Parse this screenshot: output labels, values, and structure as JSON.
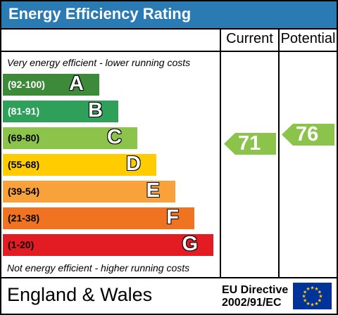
{
  "header": {
    "title": "Energy Efficiency Rating"
  },
  "columns": {
    "current": "Current",
    "potential": "Potential"
  },
  "notes": {
    "top": "Very energy efficient - lower running costs",
    "bottom": "Not energy efficient - higher running costs"
  },
  "bands": [
    {
      "range": "(92-100)",
      "letter": "A",
      "color": "#3d8a3a",
      "range_color": "#ffffff"
    },
    {
      "range": "(81-91)",
      "letter": "B",
      "color": "#2fa05a",
      "range_color": "#ffffff"
    },
    {
      "range": "(69-80)",
      "letter": "C",
      "color": "#8cc34a",
      "range_color": "#000000"
    },
    {
      "range": "(55-68)",
      "letter": "D",
      "color": "#ffcc00",
      "range_color": "#000000"
    },
    {
      "range": "(39-54)",
      "letter": "E",
      "color": "#f9a13a",
      "range_color": "#000000"
    },
    {
      "range": "(21-38)",
      "letter": "F",
      "color": "#f07321",
      "range_color": "#000000"
    },
    {
      "range": "(1-20)",
      "letter": "G",
      "color": "#e31b23",
      "range_color": "#000000"
    }
  ],
  "ratings": {
    "current": {
      "value": "71",
      "color": "#8cc34a"
    },
    "potential": {
      "value": "76",
      "color": "#8cc34a"
    }
  },
  "footer": {
    "country": "England & Wales",
    "directive_line1": "EU Directive",
    "directive_line2": "2002/91/EC",
    "flag_icon": "eu-flag-icon"
  }
}
